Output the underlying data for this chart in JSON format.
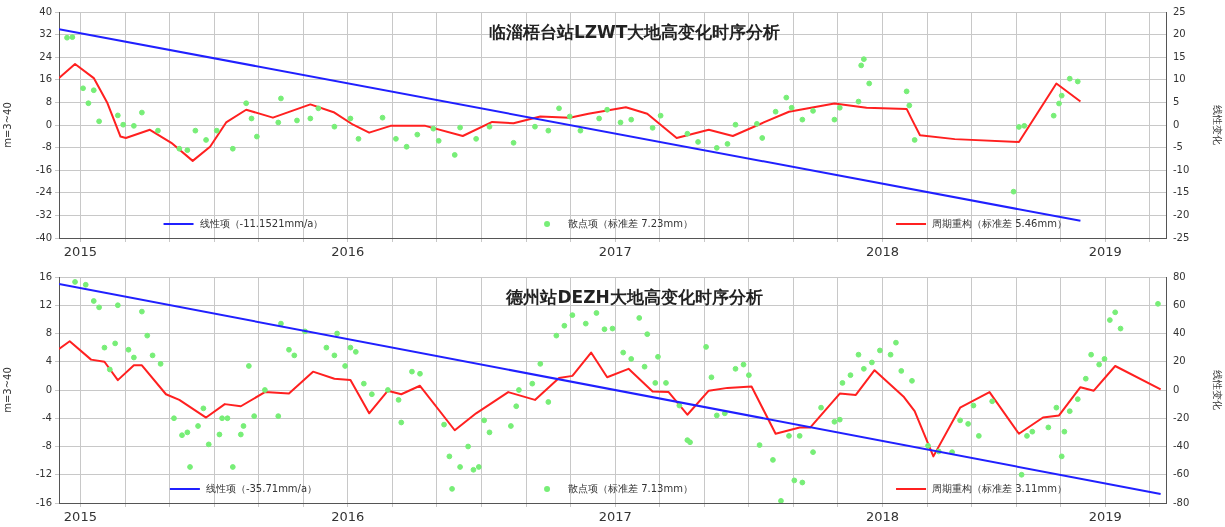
{
  "chart_data": [
    {
      "type": "line",
      "title": "临淄梧台站LZWT大地高变化时序分析",
      "ylabel": "m=3~40",
      "y2label": "线性变化",
      "xlim": [
        2015.42,
        2019.56
      ],
      "xticks": [
        {
          "value": 2015.5,
          "label": "2015"
        },
        {
          "value": 2015.667,
          "label": null
        },
        {
          "value": 2015.833,
          "label": null
        },
        {
          "value": 2016,
          "label": null
        },
        {
          "value": 2016.167,
          "label": null
        },
        {
          "value": 2016.333,
          "label": null
        },
        {
          "value": 2016.5,
          "label": "2016"
        },
        {
          "value": 2016.667,
          "label": null
        },
        {
          "value": 2016.833,
          "label": null
        },
        {
          "value": 2017,
          "label": null
        },
        {
          "value": 2017.167,
          "label": null
        },
        {
          "value": 2017.333,
          "label": null
        },
        {
          "value": 2017.5,
          "label": "2017"
        },
        {
          "value": 2017.667,
          "label": null
        },
        {
          "value": 2017.833,
          "label": null
        },
        {
          "value": 2018,
          "label": null
        },
        {
          "value": 2018.167,
          "label": null
        },
        {
          "value": 2018.333,
          "label": null
        },
        {
          "value": 2018.5,
          "label": "2018"
        },
        {
          "value": 2018.667,
          "label": null
        },
        {
          "value": 2018.833,
          "label": null
        },
        {
          "value": 2019,
          "label": null
        },
        {
          "value": 2019.167,
          "label": null
        },
        {
          "value": 2019.333,
          "label": "2019"
        },
        {
          "value": 2019.5,
          "label": null
        }
      ],
      "ylim": [
        -40,
        40
      ],
      "yticks": [
        -40,
        -32,
        -24,
        -16,
        -8,
        0,
        8,
        16,
        24,
        32,
        40
      ],
      "y2lim": [
        -25,
        25
      ],
      "y2ticks": [
        -25,
        -20,
        -15,
        -10,
        -5,
        0,
        5,
        10,
        15,
        20,
        25
      ],
      "grid": true,
      "legend": "bottom",
      "series": [
        {
          "name": "线性项（-11.1521mm/a）",
          "type": "line",
          "axis": "y2",
          "marker": "none",
          "color": "#2020ff",
          "x": [
            2015.42,
            2019.24
          ],
          "values": [
            21.2,
            -21.2
          ]
        },
        {
          "name": "散点项（标准差 7.23mm）",
          "type": "scatter",
          "marker": "circle",
          "color": "#77ee77",
          "x": [
            2015.45,
            2015.47,
            2015.51,
            2015.53,
            2015.55,
            2015.57,
            2015.64,
            2015.66,
            2015.7,
            2015.73,
            2015.79,
            2015.87,
            2015.9,
            2015.93,
            2015.97,
            2016.01,
            2016.07,
            2016.12,
            2016.14,
            2016.16,
            2016.24,
            2016.25,
            2016.31,
            2016.36,
            2016.39,
            2016.45,
            2016.51,
            2016.54,
            2016.63,
            2016.68,
            2016.72,
            2016.76,
            2016.82,
            2016.84,
            2016.9,
            2016.92,
            2016.98,
            2017.03,
            2017.12,
            2017.2,
            2017.25,
            2017.29,
            2017.33,
            2017.37,
            2017.44,
            2017.47,
            2017.52,
            2017.56,
            2017.64,
            2017.67,
            2017.77,
            2017.81,
            2017.88,
            2017.92,
            2017.95,
            2018.03,
            2018.05,
            2018.1,
            2018.14,
            2018.16,
            2018.2,
            2018.24,
            2018.32,
            2018.34,
            2018.41,
            2018.42,
            2018.43,
            2018.45,
            2018.59,
            2018.6,
            2018.62,
            2018.99,
            2019.01,
            2019.03,
            2019.14,
            2019.16,
            2019.17,
            2019.2,
            2019.23
          ],
          "values": [
            30.9,
            31.1,
            13,
            7.7,
            12.3,
            1.3,
            3.4,
            0.1,
            -0.3,
            4.4,
            -2,
            -8.4,
            -8.9,
            -2,
            -5.3,
            -2,
            -8.4,
            7.7,
            2.3,
            -4.1,
            0.9,
            9.4,
            1.6,
            2.3,
            5.9,
            -0.6,
            2.3,
            -4.9,
            2.6,
            -4.9,
            -7.7,
            -3.4,
            -1.3,
            -5.6,
            -10.6,
            -0.9,
            -4.9,
            -0.6,
            -6.3,
            -0.6,
            -2,
            5.9,
            3,
            -2,
            2.3,
            5.4,
            0.9,
            1.9,
            -1,
            3.3,
            -3.1,
            -6,
            -8.1,
            -6.7,
            0.1,
            0.4,
            -4.6,
            4.7,
            9.7,
            6.1,
            1.9,
            5,
            1.9,
            6.1,
            8.3,
            21.1,
            23.3,
            14.7,
            11.9,
            6.9,
            -5.3,
            -23.6,
            -0.7,
            -0.3,
            3.3,
            7.6,
            10.4,
            16.4,
            15.4
          ]
        },
        {
          "name": "周期重构（标准差 5.46mm）",
          "type": "line",
          "marker": "none",
          "color": "#ff2020",
          "x": [
            2015.42,
            2015.48,
            2015.55,
            2015.6,
            2015.65,
            2015.67,
            2015.76,
            2015.84,
            2015.92,
            2015.985,
            2016.045,
            2016.12,
            2016.22,
            2016.36,
            2016.45,
            2016.52,
            2016.58,
            2016.66,
            2016.79,
            2016.93,
            2017.04,
            2017.12,
            2017.22,
            2017.33,
            2017.4,
            2017.54,
            2017.62,
            2017.73,
            2017.85,
            2017.94,
            2018.06,
            2018.15,
            2018.32,
            2018.44,
            2018.59,
            2018.61,
            2018.64,
            2018.77,
            2019.01,
            2019.15,
            2019.24
          ],
          "values": [
            16.6,
            21.6,
            16.6,
            8,
            -4.1,
            -4.6,
            -1.7,
            -6.3,
            -12.7,
            -7.7,
            0.9,
            5.4,
            2.6,
            7.3,
            4.4,
            0.1,
            -2.7,
            -0.3,
            -0.3,
            -3.9,
            1.1,
            0.6,
            3,
            2.6,
            4,
            6.3,
            4,
            -4.6,
            -1.7,
            -3.9,
            1.1,
            4.7,
            7.6,
            6.1,
            5.7,
            1.9,
            -3.6,
            -5,
            -6,
            14.7,
            8.3
          ]
        }
      ]
    },
    {
      "type": "line",
      "title": "德州站DEZH大地高变化时序分析",
      "ylabel": "m=3~40",
      "y2label": "线性变化",
      "xlim": [
        2015.42,
        2019.56
      ],
      "xticks": [
        {
          "value": 2015.5,
          "label": "2015"
        },
        {
          "value": 2015.667,
          "label": null
        },
        {
          "value": 2015.833,
          "label": null
        },
        {
          "value": 2016,
          "label": null
        },
        {
          "value": 2016.167,
          "label": null
        },
        {
          "value": 2016.333,
          "label": null
        },
        {
          "value": 2016.5,
          "label": "2016"
        },
        {
          "value": 2016.667,
          "label": null
        },
        {
          "value": 2016.833,
          "label": null
        },
        {
          "value": 2017,
          "label": null
        },
        {
          "value": 2017.167,
          "label": null
        },
        {
          "value": 2017.333,
          "label": null
        },
        {
          "value": 2017.5,
          "label": "2017"
        },
        {
          "value": 2017.667,
          "label": null
        },
        {
          "value": 2017.833,
          "label": null
        },
        {
          "value": 2018,
          "label": null
        },
        {
          "value": 2018.167,
          "label": null
        },
        {
          "value": 2018.333,
          "label": null
        },
        {
          "value": 2018.5,
          "label": "2018"
        },
        {
          "value": 2018.667,
          "label": null
        },
        {
          "value": 2018.833,
          "label": null
        },
        {
          "value": 2019,
          "label": null
        },
        {
          "value": 2019.167,
          "label": null
        },
        {
          "value": 2019.333,
          "label": "2019"
        },
        {
          "value": 2019.5,
          "label": null
        }
      ],
      "ylim": [
        -16,
        16
      ],
      "yticks": [
        -16,
        -12,
        -8,
        -4,
        0,
        4,
        8,
        12,
        16
      ],
      "y2lim": [
        -80,
        80
      ],
      "y2ticks": [
        -80,
        -60,
        -40,
        -20,
        0,
        20,
        40,
        60,
        80
      ],
      "grid": true,
      "legend": "bottom",
      "series": [
        {
          "name": "线性项（-35.71mm/a）",
          "type": "line",
          "axis": "y2",
          "marker": "none",
          "color": "#2020ff",
          "x": [
            2015.42,
            2019.54
          ],
          "values": [
            75,
            -73.6
          ]
        },
        {
          "name": "散点项（标准差 7.13mm）",
          "type": "scatter",
          "marker": "circle",
          "color": "#77ee77",
          "x": [
            2015.48,
            2015.52,
            2015.55,
            2015.57,
            2015.59,
            2015.61,
            2015.63,
            2015.64,
            2015.68,
            2015.7,
            2015.73,
            2015.75,
            2015.77,
            2015.8,
            2015.85,
            2015.88,
            2015.9,
            2015.91,
            2015.94,
            2015.96,
            2015.98,
            2016.02,
            2016.03,
            2016.05,
            2016.07,
            2016.1,
            2016.11,
            2016.13,
            2016.15,
            2016.19,
            2016.24,
            2016.25,
            2016.28,
            2016.3,
            2016.34,
            2016.42,
            2016.45,
            2016.46,
            2016.49,
            2016.51,
            2016.53,
            2016.56,
            2016.59,
            2016.65,
            2016.69,
            2016.7,
            2016.74,
            2016.77,
            2016.86,
            2016.88,
            2016.89,
            2016.92,
            2016.95,
            2016.97,
            2016.99,
            2017.01,
            2017.03,
            2017.11,
            2017.13,
            2017.14,
            2017.19,
            2017.22,
            2017.25,
            2017.28,
            2017.31,
            2017.34,
            2017.39,
            2017.43,
            2017.46,
            2017.49,
            2017.53,
            2017.56,
            2017.59,
            2017.61,
            2017.62,
            2017.65,
            2017.66,
            2017.69,
            2017.74,
            2017.77,
            2017.78,
            2017.84,
            2017.86,
            2017.88,
            2017.91,
            2017.95,
            2017.98,
            2018,
            2018.04,
            2018.09,
            2018.12,
            2018.15,
            2018.17,
            2018.19,
            2018.2,
            2018.24,
            2018.27,
            2018.32,
            2018.34,
            2018.35,
            2018.38,
            2018.41,
            2018.43,
            2018.46,
            2018.49,
            2018.53,
            2018.55,
            2018.57,
            2018.61,
            2018.67,
            2018.71,
            2018.76,
            2018.79,
            2018.82,
            2018.84,
            2018.86,
            2018.91,
            2019.02,
            2019.04,
            2019.06,
            2019.12,
            2019.15,
            2019.17,
            2019.18,
            2019.2,
            2019.23,
            2019.26,
            2019.28,
            2019.31,
            2019.33,
            2019.35,
            2019.37,
            2019.39,
            2019.53
          ],
          "values": [
            15.3,
            14.9,
            12.6,
            11.7,
            6,
            2.9,
            6.6,
            12,
            5.7,
            4.6,
            11.1,
            7.7,
            4.9,
            3.7,
            -4,
            -6.4,
            -6,
            -10.9,
            -5.1,
            -2.6,
            -7.7,
            -6.3,
            -4,
            -4,
            -10.9,
            -6.3,
            -5.1,
            3.4,
            -3.7,
            0,
            -3.7,
            9.4,
            5.7,
            4.9,
            8.3,
            6,
            4.9,
            8,
            3.4,
            6,
            5.4,
            0.9,
            -0.6,
            0,
            -1.4,
            -4.6,
            2.6,
            2.3,
            -4.9,
            -9.4,
            -14,
            -10.9,
            -8,
            -11.3,
            -10.9,
            -4.3,
            -6,
            -5.1,
            -2.3,
            0,
            0.9,
            3.7,
            -1.7,
            7.7,
            9.1,
            10.6,
            9.4,
            10.9,
            8.6,
            8.7,
            5.3,
            4.4,
            10.2,
            3.3,
            7.9,
            1,
            4.7,
            1,
            -2.2,
            -7.1,
            -7.4,
            6.1,
            1.8,
            -3.6,
            -3.3,
            3,
            3.6,
            2.1,
            -7.8,
            -9.9,
            -15.7,
            -6.5,
            -12.8,
            -6.5,
            -13.1,
            -8.8,
            -2.5,
            -4.5,
            -4.2,
            1,
            2.1,
            5,
            3,
            3.9,
            5.6,
            5,
            6.7,
            2.7,
            1.3,
            -7.9,
            -8.7,
            -8.8,
            -4.3,
            -4.8,
            -2.2,
            -6.5,
            -1.6,
            -12,
            -6.5,
            -5.9,
            -5.3,
            -2.5,
            -9.4,
            -5.9,
            -3,
            -1.3,
            1.6,
            5,
            3.6,
            4.4,
            9.9,
            11,
            8.7,
            12.2
          ]
        },
        {
          "name": "周期重构（标准差 3.11mm）",
          "type": "line",
          "marker": "none",
          "color": "#ff2020",
          "x": [
            2015.42,
            2015.46,
            2015.54,
            2015.59,
            2015.64,
            2015.7,
            2015.73,
            2015.82,
            2015.87,
            2015.97,
            2016.04,
            2016.1,
            2016.19,
            2016.28,
            2016.37,
            2016.45,
            2016.51,
            2016.58,
            2016.65,
            2016.7,
            2016.77,
            2016.9,
            2016.98,
            2017.1,
            2017.2,
            2017.29,
            2017.34,
            2017.41,
            2017.47,
            2017.55,
            2017.64,
            2017.7,
            2017.77,
            2017.85,
            2017.92,
            2018.01,
            2018.1,
            2018.19,
            2018.23,
            2018.34,
            2018.4,
            2018.47,
            2018.58,
            2018.62,
            2018.69,
            2018.79,
            2018.9,
            2019.01,
            2019.1,
            2019.16,
            2019.24,
            2019.29,
            2019.37,
            2019.54
          ],
          "values": [
            5.8,
            6.9,
            4.3,
            4,
            1.4,
            3.5,
            3.5,
            -0.6,
            -1.4,
            -3.9,
            -2,
            -2.3,
            -0.3,
            -0.5,
            2.6,
            1.6,
            1.4,
            -3.3,
            -0.1,
            -0.6,
            0.6,
            -5.7,
            -3.3,
            -0.3,
            -1.4,
            1.7,
            2,
            5.3,
            1.8,
            3,
            -0.2,
            -0.3,
            -3.5,
            -0.1,
            0.3,
            0.5,
            -6.2,
            -5.3,
            -5.3,
            -0.5,
            -0.7,
            2.8,
            -1,
            -3,
            -9.4,
            -2.5,
            -0.3,
            -6.2,
            -3.9,
            -3.6,
            0.4,
            -0.1,
            3.4,
            0.1
          ]
        }
      ]
    }
  ]
}
